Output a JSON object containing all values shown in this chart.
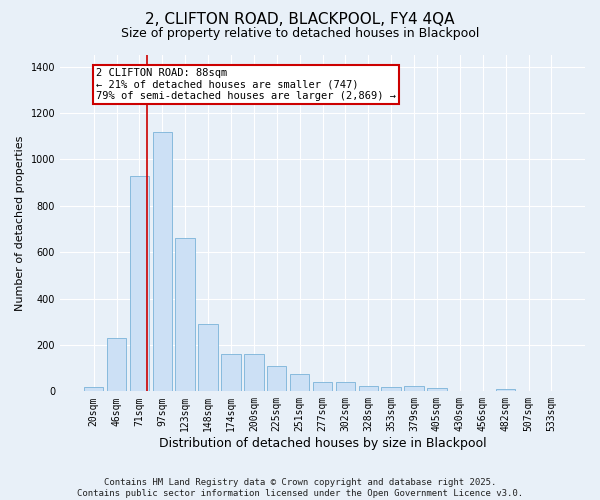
{
  "title": "2, CLIFTON ROAD, BLACKPOOL, FY4 4QA",
  "subtitle": "Size of property relative to detached houses in Blackpool",
  "xlabel": "Distribution of detached houses by size in Blackpool",
  "ylabel": "Number of detached properties",
  "categories": [
    "20sqm",
    "46sqm",
    "71sqm",
    "97sqm",
    "123sqm",
    "148sqm",
    "174sqm",
    "200sqm",
    "225sqm",
    "251sqm",
    "277sqm",
    "302sqm",
    "328sqm",
    "353sqm",
    "379sqm",
    "405sqm",
    "430sqm",
    "456sqm",
    "482sqm",
    "507sqm",
    "533sqm"
  ],
  "values": [
    18,
    230,
    930,
    1120,
    660,
    290,
    160,
    160,
    110,
    75,
    42,
    42,
    25,
    18,
    25,
    13,
    0,
    0,
    8,
    0,
    0
  ],
  "bar_color": "#cce0f5",
  "bar_edge_color": "#7ab3d9",
  "vline_color": "#cc0000",
  "vline_x_index": 2.35,
  "annotation_text": "2 CLIFTON ROAD: 88sqm\n← 21% of detached houses are smaller (747)\n79% of semi-detached houses are larger (2,869) →",
  "annotation_box_facecolor": "white",
  "annotation_box_edgecolor": "#cc0000",
  "ylim": [
    0,
    1450
  ],
  "yticks": [
    0,
    200,
    400,
    600,
    800,
    1000,
    1200,
    1400
  ],
  "background_color": "#e8f0f8",
  "grid_color": "white",
  "title_fontsize": 11,
  "subtitle_fontsize": 9,
  "xlabel_fontsize": 9,
  "ylabel_fontsize": 8,
  "tick_fontsize": 7,
  "annotation_fontsize": 7.5,
  "footer_fontsize": 6.5,
  "footer_text": "Contains HM Land Registry data © Crown copyright and database right 2025.\nContains public sector information licensed under the Open Government Licence v3.0."
}
